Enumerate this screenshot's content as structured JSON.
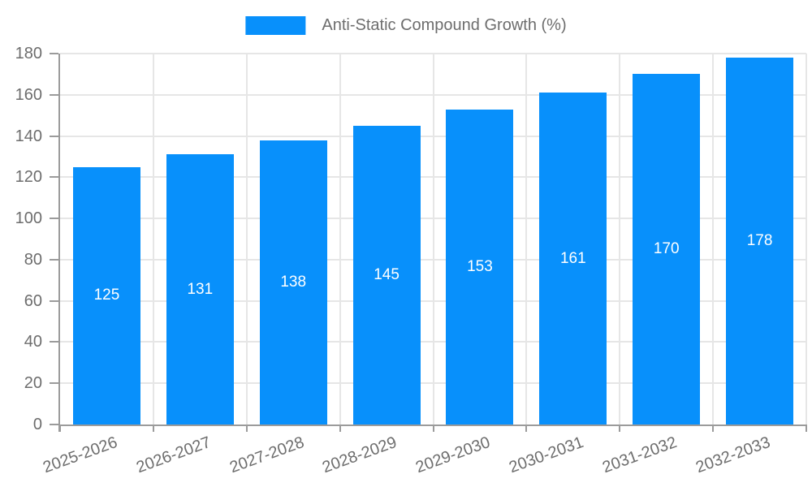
{
  "chart_data": {
    "type": "bar",
    "title": "Anti-Static Compound Growth (%)",
    "categories": [
      "2025-2026",
      "2026-2027",
      "2027-2028",
      "2028-2029",
      "2029-2030",
      "2030-2031",
      "2031-2032",
      "2032-2033"
    ],
    "values": [
      125,
      131,
      138,
      145,
      153,
      161,
      170,
      178
    ],
    "xlabel": "",
    "ylabel": "",
    "ylim": [
      0,
      180
    ],
    "yticks": [
      0,
      20,
      40,
      60,
      80,
      100,
      120,
      140,
      160,
      180
    ],
    "grid": true,
    "legend_position": "top-center",
    "value_labels_inside_bars": true,
    "bar_color": "#0890fb",
    "value_label_color": "#ffffff",
    "tick_label_color": "#6d6d6d",
    "grid_color": "#e6e6e6",
    "axis_color": "#9b9b9b",
    "background_color": "#ffffff"
  }
}
